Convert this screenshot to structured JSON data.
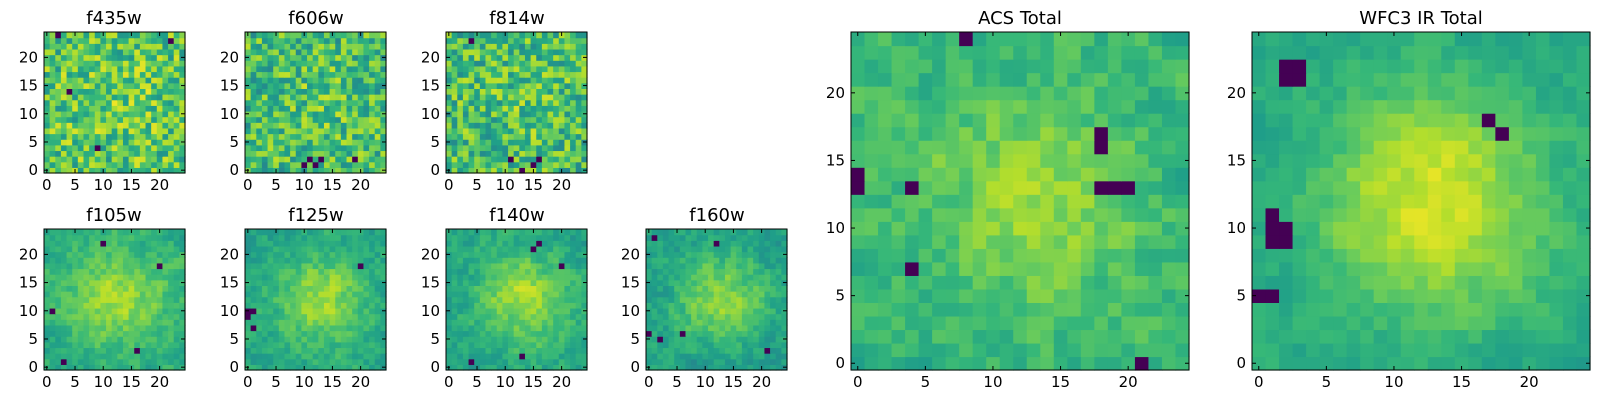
{
  "chart_data": [
    {
      "type": "heatmap",
      "title": "f435w",
      "xticks": [
        "0",
        "5",
        "10",
        "15",
        "20"
      ],
      "yticks": [
        "0",
        "5",
        "10",
        "15",
        "20"
      ],
      "xlim": [
        -0.5,
        24.5
      ],
      "ylim": [
        -0.5,
        24.5
      ],
      "grid": false,
      "colormap": "viridis",
      "summary": {
        "mean": 0.72,
        "spread": 0.22,
        "blob_strength": 0.05,
        "dark_pixels": [
          [
            9,
            4
          ],
          [
            4,
            14
          ],
          [
            22,
            23
          ],
          [
            2,
            24
          ]
        ]
      }
    },
    {
      "type": "heatmap",
      "title": "f606w",
      "xticks": [
        "0",
        "5",
        "10",
        "15",
        "20"
      ],
      "yticks": [
        "0",
        "5",
        "10",
        "15",
        "20"
      ],
      "xlim": [
        -0.5,
        24.5
      ],
      "ylim": [
        -0.5,
        24.5
      ],
      "grid": false,
      "colormap": "viridis",
      "summary": {
        "mean": 0.68,
        "spread": 0.22,
        "blob_strength": 0.05,
        "dark_pixels": [
          [
            11,
            2
          ],
          [
            12,
            1
          ],
          [
            13,
            2
          ],
          [
            10,
            1
          ],
          [
            19,
            2
          ]
        ]
      }
    },
    {
      "type": "heatmap",
      "title": "f814w",
      "xticks": [
        "0",
        "5",
        "10",
        "15",
        "20"
      ],
      "yticks": [
        "0",
        "5",
        "10",
        "15",
        "20"
      ],
      "xlim": [
        -0.5,
        24.5
      ],
      "ylim": [
        -0.5,
        24.5
      ],
      "grid": false,
      "colormap": "viridis",
      "summary": {
        "mean": 0.68,
        "spread": 0.22,
        "blob_strength": 0.05,
        "dark_pixels": [
          [
            4,
            23
          ],
          [
            11,
            2
          ],
          [
            15,
            1
          ],
          [
            16,
            2
          ],
          [
            13,
            0
          ]
        ]
      }
    },
    {
      "type": "heatmap",
      "title": "f105w",
      "xticks": [
        "0",
        "5",
        "10",
        "15",
        "20"
      ],
      "yticks": [
        "0",
        "5",
        "10",
        "15",
        "20"
      ],
      "xlim": [
        -0.5,
        24.5
      ],
      "ylim": [
        -0.5,
        24.5
      ],
      "grid": false,
      "colormap": "viridis",
      "summary": {
        "mean": 0.62,
        "spread": 0.15,
        "blob_strength": 0.25,
        "dark_pixels": [
          [
            1,
            10
          ],
          [
            20,
            18
          ],
          [
            3,
            1
          ],
          [
            16,
            3
          ],
          [
            10,
            22
          ]
        ]
      }
    },
    {
      "type": "heatmap",
      "title": "f125w",
      "xticks": [
        "0",
        "5",
        "10",
        "15",
        "20"
      ],
      "yticks": [
        "0",
        "5",
        "10",
        "15",
        "20"
      ],
      "xlim": [
        -0.5,
        24.5
      ],
      "ylim": [
        -0.5,
        24.5
      ],
      "grid": false,
      "colormap": "viridis",
      "summary": {
        "mean": 0.58,
        "spread": 0.15,
        "blob_strength": 0.28,
        "dark_pixels": [
          [
            0,
            10
          ],
          [
            1,
            10
          ],
          [
            0,
            9
          ],
          [
            1,
            7
          ],
          [
            20,
            18
          ]
        ]
      }
    },
    {
      "type": "heatmap",
      "title": "f140w",
      "xticks": [
        "0",
        "5",
        "10",
        "15",
        "20"
      ],
      "yticks": [
        "0",
        "5",
        "10",
        "15",
        "20"
      ],
      "xlim": [
        -0.5,
        24.5
      ],
      "ylim": [
        -0.5,
        24.5
      ],
      "grid": false,
      "colormap": "viridis",
      "summary": {
        "mean": 0.58,
        "spread": 0.15,
        "blob_strength": 0.28,
        "dark_pixels": [
          [
            15,
            21
          ],
          [
            16,
            22
          ],
          [
            4,
            1
          ],
          [
            13,
            2
          ],
          [
            20,
            18
          ]
        ]
      }
    },
    {
      "type": "heatmap",
      "title": "f160w",
      "xticks": [
        "0",
        "5",
        "10",
        "15",
        "20"
      ],
      "yticks": [
        "0",
        "5",
        "10",
        "15",
        "20"
      ],
      "xlim": [
        -0.5,
        24.5
      ],
      "ylim": [
        -0.5,
        24.5
      ],
      "grid": false,
      "colormap": "viridis",
      "summary": {
        "mean": 0.56,
        "spread": 0.15,
        "blob_strength": 0.28,
        "dark_pixels": [
          [
            1,
            23
          ],
          [
            0,
            6
          ],
          [
            2,
            5
          ],
          [
            6,
            6
          ],
          [
            21,
            3
          ],
          [
            12,
            22
          ]
        ]
      }
    },
    {
      "type": "heatmap",
      "title": "ACS Total",
      "xticks": [
        "0",
        "5",
        "10",
        "15",
        "20"
      ],
      "yticks": [
        "0",
        "5",
        "10",
        "15",
        "20"
      ],
      "xlim": [
        -0.5,
        24.5
      ],
      "ylim": [
        -0.5,
        24.5
      ],
      "grid": false,
      "colormap": "viridis",
      "summary": {
        "mean": 0.65,
        "spread": 0.16,
        "blob_strength": 0.2,
        "dark_pixels": [
          [
            18,
            13
          ],
          [
            19,
            13
          ],
          [
            20,
            13
          ],
          [
            18,
            16
          ],
          [
            4,
            13
          ],
          [
            4,
            7
          ],
          [
            21,
            0
          ],
          [
            0,
            14
          ],
          [
            0,
            13
          ],
          [
            8,
            24
          ],
          [
            18,
            17
          ]
        ]
      }
    },
    {
      "type": "heatmap",
      "title": "WFC3 IR Total",
      "xticks": [
        "0",
        "5",
        "10",
        "15",
        "20"
      ],
      "yticks": [
        "0",
        "5",
        "10",
        "15",
        "20"
      ],
      "xlim": [
        -0.5,
        24.5
      ],
      "ylim": [
        -0.5,
        24.5
      ],
      "grid": false,
      "colormap": "viridis",
      "summary": {
        "mean": 0.6,
        "spread": 0.1,
        "blob_strength": 0.35,
        "dark_pixels": [
          [
            2,
            22
          ],
          [
            3,
            22
          ],
          [
            2,
            21
          ],
          [
            3,
            21
          ],
          [
            1,
            10
          ],
          [
            1,
            11
          ],
          [
            2,
            10
          ],
          [
            1,
            9
          ],
          [
            2,
            9
          ],
          [
            0,
            5
          ],
          [
            1,
            5
          ],
          [
            18,
            17
          ],
          [
            17,
            18
          ]
        ]
      }
    }
  ]
}
